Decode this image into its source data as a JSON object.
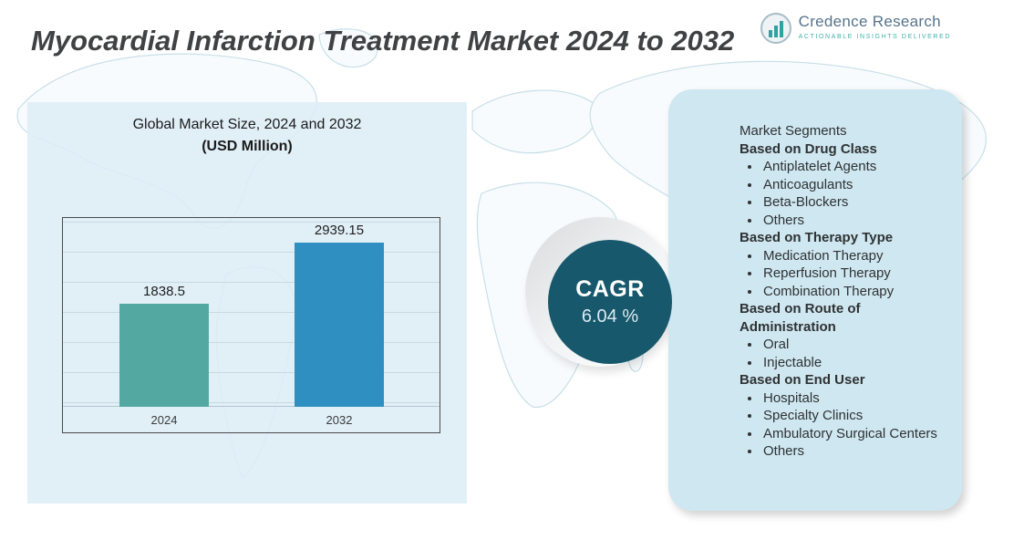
{
  "header": {
    "title": "Myocardial Infarction Treatment Market 2024 to 2032",
    "logo": {
      "name": "Credence Research",
      "tagline": "Actionable Insights Delivered"
    }
  },
  "chart_data": {
    "type": "bar",
    "title": "Global Market Size, 2024 and 2032",
    "subtitle": "(USD Million)",
    "categories": [
      "2024",
      "2032"
    ],
    "values": [
      1838.5,
      2939.15
    ],
    "colors": [
      "#53a8a2",
      "#2e8fc0"
    ],
    "grid": true,
    "legend": false
  },
  "cagr": {
    "label": "CAGR",
    "value": "6.04 %",
    "circle_color": "#17586c"
  },
  "segments": {
    "title": "Market Segments",
    "groups": [
      {
        "heading": "Based on Drug Class",
        "items": [
          "Antiplatelet Agents",
          "Anticoagulants",
          "Beta-Blockers",
          "Others"
        ]
      },
      {
        "heading": "Based on Therapy Type",
        "items": [
          "Medication Therapy",
          "Reperfusion Therapy",
          "Combination Therapy"
        ]
      },
      {
        "heading": "Based on Route of Administration",
        "items": [
          "Oral",
          "Injectable"
        ]
      },
      {
        "heading": "Based on End User",
        "items": [
          "Hospitals",
          "Specialty Clinics",
          "Ambulatory Surgical Centers",
          "Others"
        ]
      }
    ]
  }
}
